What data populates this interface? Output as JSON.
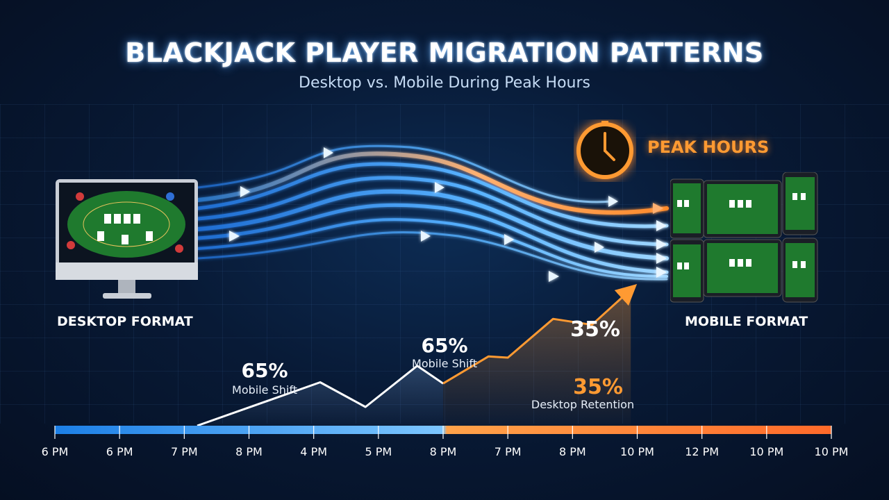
{
  "title": "BLACKJACK PLAYER MIGRATION PATTERNS",
  "subtitle": "Desktop vs. Mobile During Peak Hours",
  "peak_label": "PEAK HOURS",
  "desktop_label": "DESKTOP FORMAT",
  "mobile_label": "MOBILE FORMAT",
  "icons": {
    "desktop": "desktop-monitor-icon",
    "mobile": "mobile-devices-icon",
    "clock": "clock-icon"
  },
  "colors": {
    "desktop_series": "#ffffff",
    "mobile_series": "#ff9a32",
    "timeline_start": "#1c7fe6",
    "timeline_end": "#ff6a2a",
    "peak": "#ff9a32"
  },
  "annotations": [
    {
      "value": "65%",
      "caption": "Mobile Shift"
    },
    {
      "value": "65%",
      "caption": "Mobile Shift"
    },
    {
      "value": "35%",
      "caption": ""
    },
    {
      "value": "35%",
      "caption": "Desktop Retention"
    }
  ],
  "chart_data": {
    "type": "line",
    "title": "BLACKJACK PLAYER MIGRATION PATTERNS",
    "subtitle": "Desktop vs. Mobile During Peak Hours",
    "xlabel": "",
    "ylabel": "",
    "x_ticks": [
      "6 PM",
      "6 PM",
      "7 PM",
      "8 PM",
      "4 PM",
      "5 PM",
      "8 PM",
      "7 PM",
      "8 PM",
      "10 PM",
      "12 PM",
      "10 PM",
      "10 PM"
    ],
    "ylim": [
      0,
      100
    ],
    "grid": true,
    "series": [
      {
        "x": [
          2.2,
          4.1,
          4.8,
          5.6,
          6.0
        ],
        "y": [
          0,
          37,
          16,
          51,
          36
        ]
      },
      {
        "x": [
          6.0,
          6.7,
          7.0,
          7.7,
          8.3,
          8.9
        ],
        "y": [
          36,
          59,
          58,
          91,
          86,
          116
        ]
      }
    ]
  }
}
